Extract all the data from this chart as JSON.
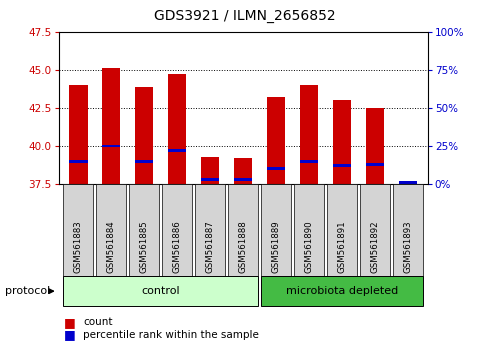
{
  "title": "GDS3921 / ILMN_2656852",
  "samples": [
    "GSM561883",
    "GSM561884",
    "GSM561885",
    "GSM561886",
    "GSM561887",
    "GSM561888",
    "GSM561889",
    "GSM561890",
    "GSM561891",
    "GSM561892",
    "GSM561893"
  ],
  "count_values": [
    44.0,
    45.1,
    43.9,
    44.7,
    39.3,
    39.2,
    43.2,
    44.0,
    43.0,
    42.5,
    37.7
  ],
  "percentile_values": [
    15,
    25,
    15,
    22,
    3,
    3,
    10,
    15,
    12,
    13,
    1
  ],
  "y_min": 37.5,
  "y_max": 47.5,
  "y_ticks": [
    37.5,
    40.0,
    42.5,
    45.0,
    47.5
  ],
  "y2_ticks": [
    0,
    25,
    50,
    75,
    100
  ],
  "bar_color": "#cc0000",
  "percentile_color": "#0000cc",
  "bg_color": "#ffffff",
  "tick_color_left": "#cc0000",
  "tick_color_right": "#0000cc",
  "bar_width": 0.55,
  "protocol_label": "protocol",
  "legend_count": "count",
  "legend_percentile": "percentile rank within the sample",
  "control_color": "#ccffcc",
  "microbiota_color": "#44bb44",
  "gray_box_color": "#d4d4d4"
}
